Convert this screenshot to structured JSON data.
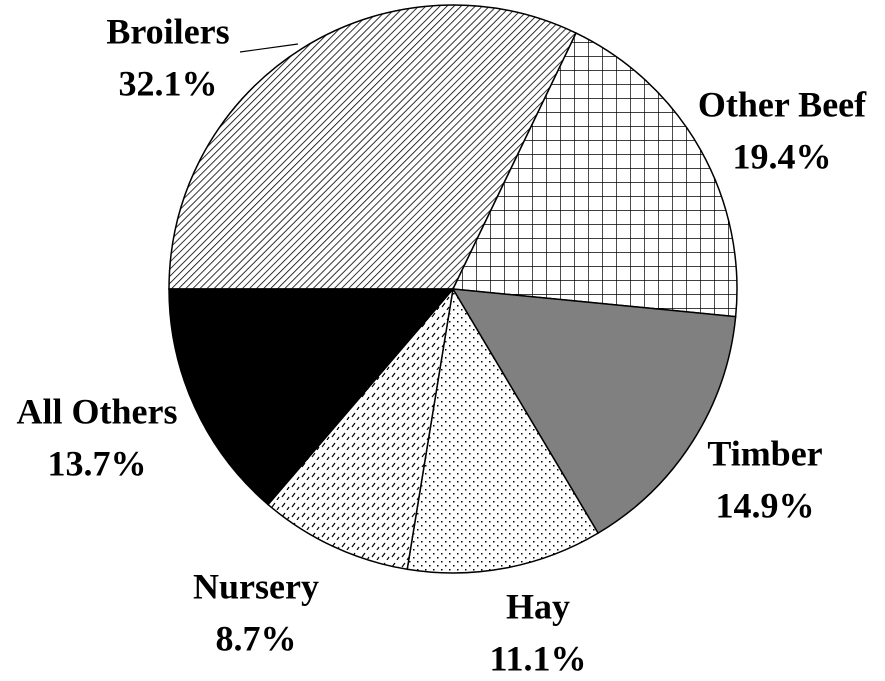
{
  "chart_data": {
    "type": "pie",
    "categories": [
      "Broilers",
      "Other Beef",
      "Timber",
      "Hay",
      "Nursery",
      "All Others"
    ],
    "values": [
      32.1,
      19.4,
      14.9,
      11.1,
      8.7,
      13.7
    ],
    "value_labels": [
      "32.1%",
      "19.4%",
      "14.9%",
      "11.1%",
      "8.7%",
      "13.7%"
    ]
  }
}
